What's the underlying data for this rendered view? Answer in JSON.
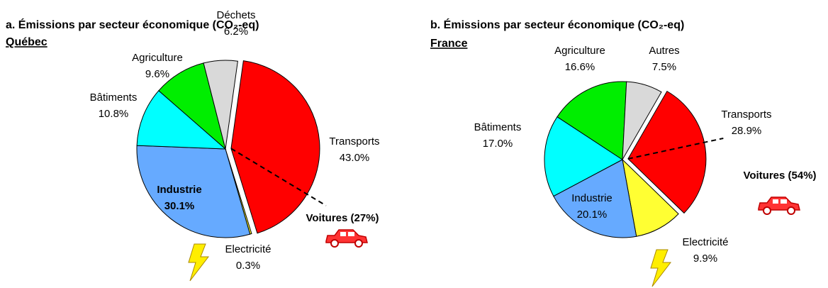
{
  "chart_data": [
    {
      "type": "pie",
      "title": "a. Émissions par secteur économique (CO₂-eq)",
      "subtitle": "Québec",
      "categories": [
        "Transports",
        "Electricité",
        "Industrie",
        "Bâtiments",
        "Agriculture",
        "Déchets"
      ],
      "values": [
        43.0,
        0.3,
        30.1,
        10.8,
        9.6,
        6.2
      ],
      "value_labels": [
        "43.0%",
        "0.3%",
        "30.1%",
        "10.8%",
        "9.6%",
        "6.2%"
      ],
      "colors": [
        "#ff0000",
        "#ffff33",
        "#66aaff",
        "#00ffff",
        "#00ee00",
        "#d9d9d9"
      ],
      "exploded": [
        "Transports"
      ],
      "annotation": {
        "label": "Voitures (27%)",
        "value": 27
      }
    },
    {
      "type": "pie",
      "title": "b. Émissions par secteur économique (CO₂-eq)",
      "subtitle": "France",
      "categories": [
        "Transports",
        "Electricité",
        "Industrie",
        "Bâtiments",
        "Agriculture",
        "Autres"
      ],
      "values": [
        28.9,
        9.9,
        20.1,
        17.0,
        16.6,
        7.5
      ],
      "value_labels": [
        "28.9%",
        "9.9%",
        "20.1%",
        "17.0%",
        "16.6%",
        "7.5%"
      ],
      "colors": [
        "#ff0000",
        "#ffff33",
        "#66aaff",
        "#00ffff",
        "#00ee00",
        "#d9d9d9"
      ],
      "exploded": [
        "Transports"
      ],
      "annotation": {
        "label": "Voitures (54%)",
        "value": 54
      }
    }
  ]
}
